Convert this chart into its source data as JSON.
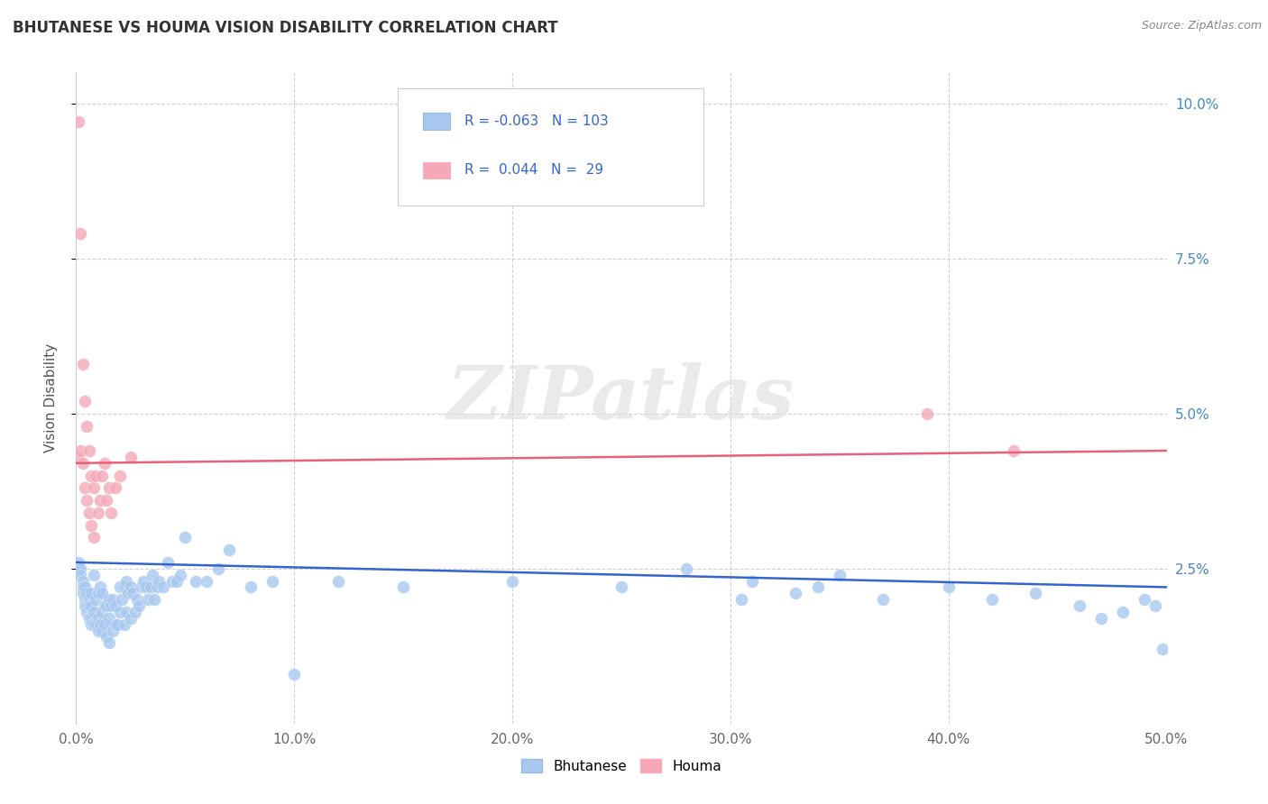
{
  "title": "BHUTANESE VS HOUMA VISION DISABILITY CORRELATION CHART",
  "source": "Source: ZipAtlas.com",
  "ylabel": "Vision Disability",
  "xlim": [
    0.0,
    0.5
  ],
  "ylim": [
    0.0,
    0.105
  ],
  "blue_R": -0.063,
  "blue_N": 103,
  "pink_R": 0.044,
  "pink_N": 29,
  "blue_color": "#A8C8F0",
  "pink_color": "#F4A8B8",
  "blue_line_color": "#3366CC",
  "pink_line_color": "#E8607A",
  "bg_color": "#FFFFFF",
  "grid_color": "#CCCCCC",
  "title_color": "#333333",
  "legend_text_color": "#3366CC",
  "right_axis_color": "#4488CC",
  "watermark_color": "#DDDDDD",
  "blue_x": [
    0.001,
    0.001,
    0.002,
    0.002,
    0.003,
    0.003,
    0.003,
    0.004,
    0.004,
    0.004,
    0.005,
    0.005,
    0.005,
    0.006,
    0.006,
    0.006,
    0.007,
    0.007,
    0.007,
    0.007,
    0.008,
    0.008,
    0.008,
    0.009,
    0.009,
    0.01,
    0.01,
    0.01,
    0.011,
    0.011,
    0.012,
    0.012,
    0.012,
    0.013,
    0.013,
    0.014,
    0.014,
    0.015,
    0.015,
    0.015,
    0.016,
    0.016,
    0.017,
    0.017,
    0.018,
    0.018,
    0.019,
    0.02,
    0.02,
    0.021,
    0.022,
    0.022,
    0.023,
    0.023,
    0.024,
    0.025,
    0.025,
    0.026,
    0.027,
    0.028,
    0.029,
    0.03,
    0.031,
    0.032,
    0.033,
    0.034,
    0.035,
    0.036,
    0.037,
    0.038,
    0.04,
    0.042,
    0.044,
    0.046,
    0.048,
    0.05,
    0.055,
    0.06,
    0.065,
    0.07,
    0.08,
    0.09,
    0.1,
    0.12,
    0.15,
    0.2,
    0.25,
    0.28,
    0.31,
    0.34,
    0.37,
    0.4,
    0.42,
    0.44,
    0.46,
    0.47,
    0.48,
    0.49,
    0.495,
    0.498,
    0.35,
    0.33,
    0.305
  ],
  "blue_y": [
    0.026,
    0.025,
    0.025,
    0.024,
    0.023,
    0.022,
    0.021,
    0.022,
    0.02,
    0.019,
    0.021,
    0.019,
    0.018,
    0.02,
    0.019,
    0.017,
    0.021,
    0.019,
    0.017,
    0.016,
    0.024,
    0.018,
    0.016,
    0.02,
    0.016,
    0.021,
    0.017,
    0.015,
    0.022,
    0.016,
    0.021,
    0.018,
    0.015,
    0.019,
    0.016,
    0.019,
    0.014,
    0.02,
    0.017,
    0.013,
    0.019,
    0.016,
    0.02,
    0.015,
    0.019,
    0.016,
    0.016,
    0.022,
    0.018,
    0.02,
    0.022,
    0.016,
    0.023,
    0.018,
    0.021,
    0.022,
    0.017,
    0.021,
    0.018,
    0.02,
    0.019,
    0.022,
    0.023,
    0.022,
    0.02,
    0.022,
    0.024,
    0.02,
    0.022,
    0.023,
    0.022,
    0.026,
    0.023,
    0.023,
    0.024,
    0.03,
    0.023,
    0.023,
    0.025,
    0.028,
    0.022,
    0.023,
    0.008,
    0.023,
    0.022,
    0.023,
    0.022,
    0.025,
    0.023,
    0.022,
    0.02,
    0.022,
    0.02,
    0.021,
    0.019,
    0.017,
    0.018,
    0.02,
    0.019,
    0.012,
    0.024,
    0.021,
    0.02
  ],
  "pink_x": [
    0.001,
    0.001,
    0.002,
    0.002,
    0.003,
    0.003,
    0.004,
    0.004,
    0.005,
    0.005,
    0.006,
    0.006,
    0.007,
    0.007,
    0.008,
    0.008,
    0.009,
    0.01,
    0.011,
    0.012,
    0.013,
    0.014,
    0.015,
    0.016,
    0.018,
    0.02,
    0.025,
    0.39,
    0.43
  ],
  "pink_y": [
    0.097,
    0.043,
    0.079,
    0.044,
    0.058,
    0.042,
    0.052,
    0.038,
    0.048,
    0.036,
    0.044,
    0.034,
    0.04,
    0.032,
    0.038,
    0.03,
    0.04,
    0.034,
    0.036,
    0.04,
    0.042,
    0.036,
    0.038,
    0.034,
    0.038,
    0.04,
    0.043,
    0.05,
    0.044
  ],
  "blue_line_x0": 0.0,
  "blue_line_x1": 0.5,
  "blue_line_y0": 0.026,
  "blue_line_y1": 0.022,
  "pink_line_x0": 0.0,
  "pink_line_x1": 0.5,
  "pink_line_y0": 0.042,
  "pink_line_y1": 0.044
}
